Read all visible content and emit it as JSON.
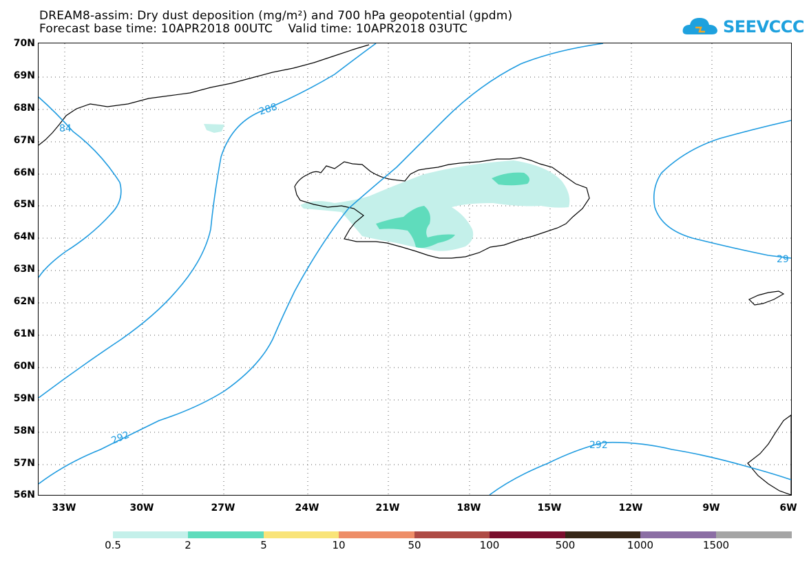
{
  "title": {
    "line1": "DREAM8-assim: Dry dust deposition (mg/m²) and 700 hPa geopotential (gpdm)",
    "line2": "Forecast base time: 10APR2018 00UTC    Valid time: 10APR2018 03UTC"
  },
  "logo": {
    "text": "SEEVCCC",
    "icon": "cloud-icon",
    "color": "#1ea1de"
  },
  "axes": {
    "lat_labels": [
      "70N",
      "69N",
      "68N",
      "67N",
      "66N",
      "65N",
      "64N",
      "63N",
      "62N",
      "61N",
      "60N",
      "59N",
      "58N",
      "57N",
      "56N"
    ],
    "lon_labels": [
      "33W",
      "30W",
      "27W",
      "24W",
      "21W",
      "18W",
      "15W",
      "12W",
      "9W",
      "6W"
    ]
  },
  "contours": {
    "color": "#1e9be0",
    "labels": [
      "84",
      "288",
      "292",
      "292",
      "29"
    ]
  },
  "shading": {
    "light": "#c4f0ea",
    "medium": "#5fdcbc"
  },
  "legend": {
    "colors": [
      "#c4f0ea",
      "#5fdcbc",
      "#f9e479",
      "#ee8e68",
      "#ae4b45",
      "#7a0f2e",
      "#372718",
      "#8b6ea4",
      "#a5a5a5"
    ],
    "labels": [
      "0.5",
      "2",
      "5",
      "10",
      "50",
      "100",
      "500",
      "1000",
      "1500"
    ]
  }
}
